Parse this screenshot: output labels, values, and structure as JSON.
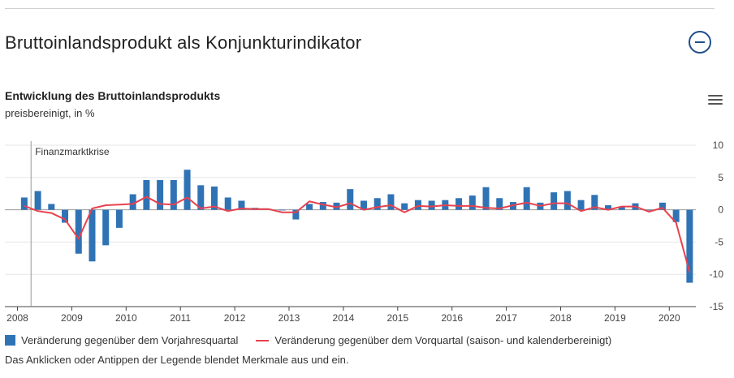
{
  "header": {
    "title": "Bruttoinlandsprodukt als Konjunkturindikator"
  },
  "chart_header": {
    "title": "Entwicklung des Bruttoinlandsprodukts",
    "subtitle": "preisbereinigt, in %"
  },
  "legend": {
    "bar_label": "Veränderung gegenüber dem Vorjahresquartal",
    "line_label": "Veränderung gegenüber dem Vorquartal (saison- und kalenderbereinigt)",
    "note": "Das Anklicken oder Antippen der Legende blendet Merkmale aus und ein."
  },
  "colors": {
    "bars": "#2f73b5",
    "line": "#e8414e",
    "grid": "#e6e6e6"
  },
  "icons": {
    "collapse": "minus-circle-icon",
    "menu": "hamburger-menu-icon"
  },
  "chart_data": {
    "type": "bar",
    "title": "Entwicklung des Bruttoinlandsprodukts",
    "subtitle": "preisbereinigt, in %",
    "ylim": [
      -15,
      10
    ],
    "yticks": [
      10,
      5,
      0,
      -5,
      -10,
      -15
    ],
    "xticks": [
      "2008",
      "2009",
      "2010",
      "2011",
      "2012",
      "2013",
      "2014",
      "2015",
      "2016",
      "2017",
      "2018",
      "2019",
      "2020"
    ],
    "grid": true,
    "annotation": {
      "label": "Finanzmarktkrise",
      "at_quarter": "2008 Q2"
    },
    "categories": [
      "2008 Q1",
      "2008 Q2",
      "2008 Q3",
      "2008 Q4",
      "2009 Q1",
      "2009 Q2",
      "2009 Q3",
      "2009 Q4",
      "2010 Q1",
      "2010 Q2",
      "2010 Q3",
      "2010 Q4",
      "2011 Q1",
      "2011 Q2",
      "2011 Q3",
      "2011 Q4",
      "2012 Q1",
      "2012 Q2",
      "2012 Q3",
      "2012 Q4",
      "2013 Q1",
      "2013 Q2",
      "2013 Q3",
      "2013 Q4",
      "2014 Q1",
      "2014 Q2",
      "2014 Q3",
      "2014 Q4",
      "2015 Q1",
      "2015 Q2",
      "2015 Q3",
      "2015 Q4",
      "2016 Q1",
      "2016 Q2",
      "2016 Q3",
      "2016 Q4",
      "2017 Q1",
      "2017 Q2",
      "2017 Q3",
      "2017 Q4",
      "2018 Q1",
      "2018 Q2",
      "2018 Q3",
      "2018 Q4",
      "2019 Q1",
      "2019 Q2",
      "2019 Q3",
      "2019 Q4",
      "2020 Q1",
      "2020 Q2"
    ],
    "series": [
      {
        "name": "Veränderung gegenüber dem Vorjahresquartal",
        "type": "bar",
        "values": [
          1.9,
          2.9,
          0.9,
          -2.0,
          -6.8,
          -8.0,
          -5.5,
          -2.8,
          2.4,
          4.6,
          4.6,
          4.6,
          6.2,
          3.8,
          3.6,
          1.9,
          1.4,
          0.3,
          0.1,
          -0.1,
          -1.5,
          0.9,
          1.2,
          1.1,
          3.2,
          1.4,
          1.8,
          2.4,
          1.0,
          1.5,
          1.4,
          1.5,
          1.8,
          2.2,
          3.5,
          1.8,
          1.2,
          3.5,
          1.1,
          2.7,
          2.9,
          1.5,
          2.3,
          0.7,
          0.5,
          1.0,
          -0.1,
          1.1,
          -1.9,
          -11.3
        ]
      },
      {
        "name": "Veränderung gegenüber dem Vorquartal (saison- und kalenderbereinigt)",
        "type": "line",
        "values": [
          0.6,
          -0.2,
          -0.5,
          -1.5,
          -4.5,
          0.2,
          0.7,
          0.8,
          0.9,
          2.0,
          0.9,
          0.8,
          1.9,
          0.2,
          0.5,
          -0.2,
          0.2,
          0.1,
          0.1,
          -0.4,
          -0.4,
          1.3,
          0.8,
          0.4,
          1.0,
          0.0,
          0.4,
          0.7,
          -0.4,
          0.6,
          0.5,
          0.7,
          0.6,
          0.6,
          0.3,
          0.2,
          0.7,
          1.1,
          0.6,
          1.0,
          1.0,
          -0.2,
          0.4,
          0.0,
          0.5,
          0.5,
          -0.3,
          0.3,
          -2.0,
          -9.7
        ]
      }
    ]
  }
}
